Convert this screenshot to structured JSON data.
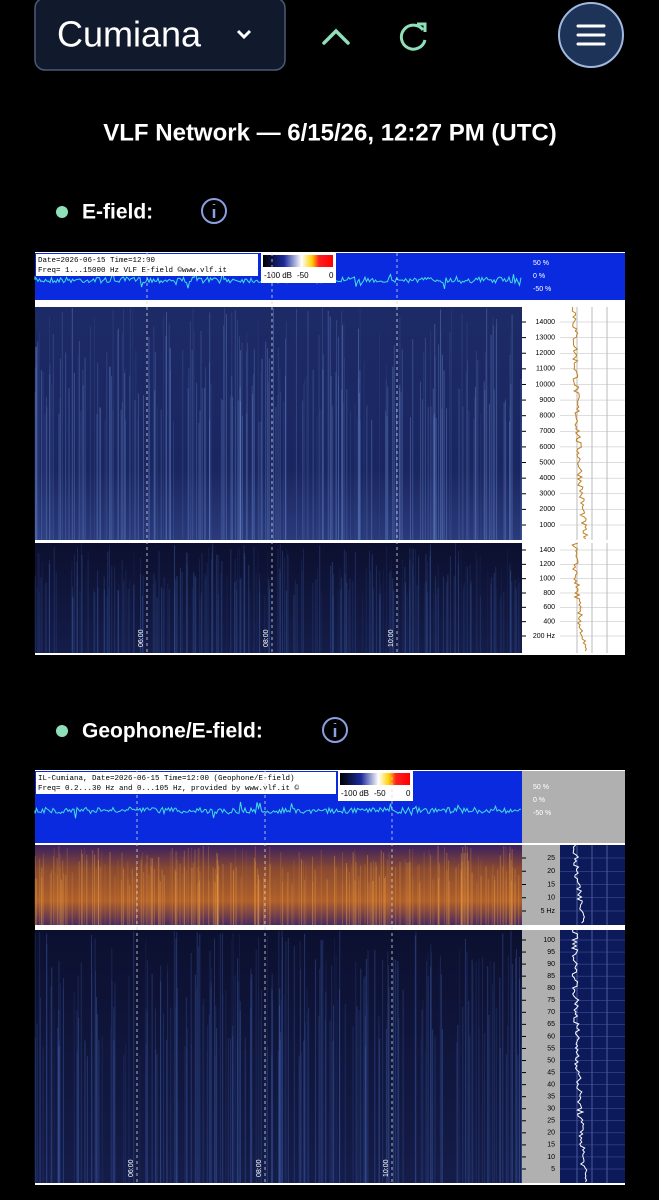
{
  "header": {
    "station": "Cumiana"
  },
  "title": "VLF Network — 6/15/26, 12:27 PM (UTC)",
  "panels": [
    {
      "label": "E-field:",
      "header_lines": [
        "Date=2026-06-15 Time=12:00",
        "Freq= 1...15000 Hz   VLF E-field ©www.vlf.it"
      ],
      "colorbar_labels": [
        "-100 dB",
        "-50",
        "0"
      ],
      "amplitude_labels": [
        "50 %",
        "0 %",
        "-50 %"
      ],
      "upper_ticks": [
        "14000",
        "13000",
        "12000",
        "11000",
        "10000",
        "9000",
        "8000",
        "7000",
        "6000",
        "5000",
        "4000",
        "3000",
        "2000",
        "1000"
      ],
      "lower_ticks": [
        "1400",
        "1200",
        "1000",
        "800",
        "600",
        "400",
        "200 Hz"
      ],
      "time_labels": [
        "06:00",
        "08:00",
        "10:00"
      ]
    },
    {
      "label": "Geophone/E-field:",
      "header_lines": [
        "IL-Cumiana, Date=2026-06-15 Time=12:00 (Geophone/E-field)",
        "Freq= 0.2...30 Hz and 0...105 Hz, provided by www.vlf.it ©"
      ],
      "colorbar_labels": [
        "-100 dB",
        "-50",
        "0"
      ],
      "amplitude_labels": [
        "50 %",
        "0 %",
        "-50 %"
      ],
      "upper_ticks": [
        "25",
        "20",
        "15",
        "10",
        "5 Hz"
      ],
      "lower_ticks": [
        "100",
        "95",
        "90",
        "85",
        "80",
        "75",
        "70",
        "65",
        "60",
        "55",
        "50",
        "45",
        "40",
        "35",
        "30",
        "25",
        "20",
        "15",
        "10",
        "5"
      ],
      "time_labels": [
        "06:00",
        "08:00",
        "10:00"
      ]
    }
  ]
}
